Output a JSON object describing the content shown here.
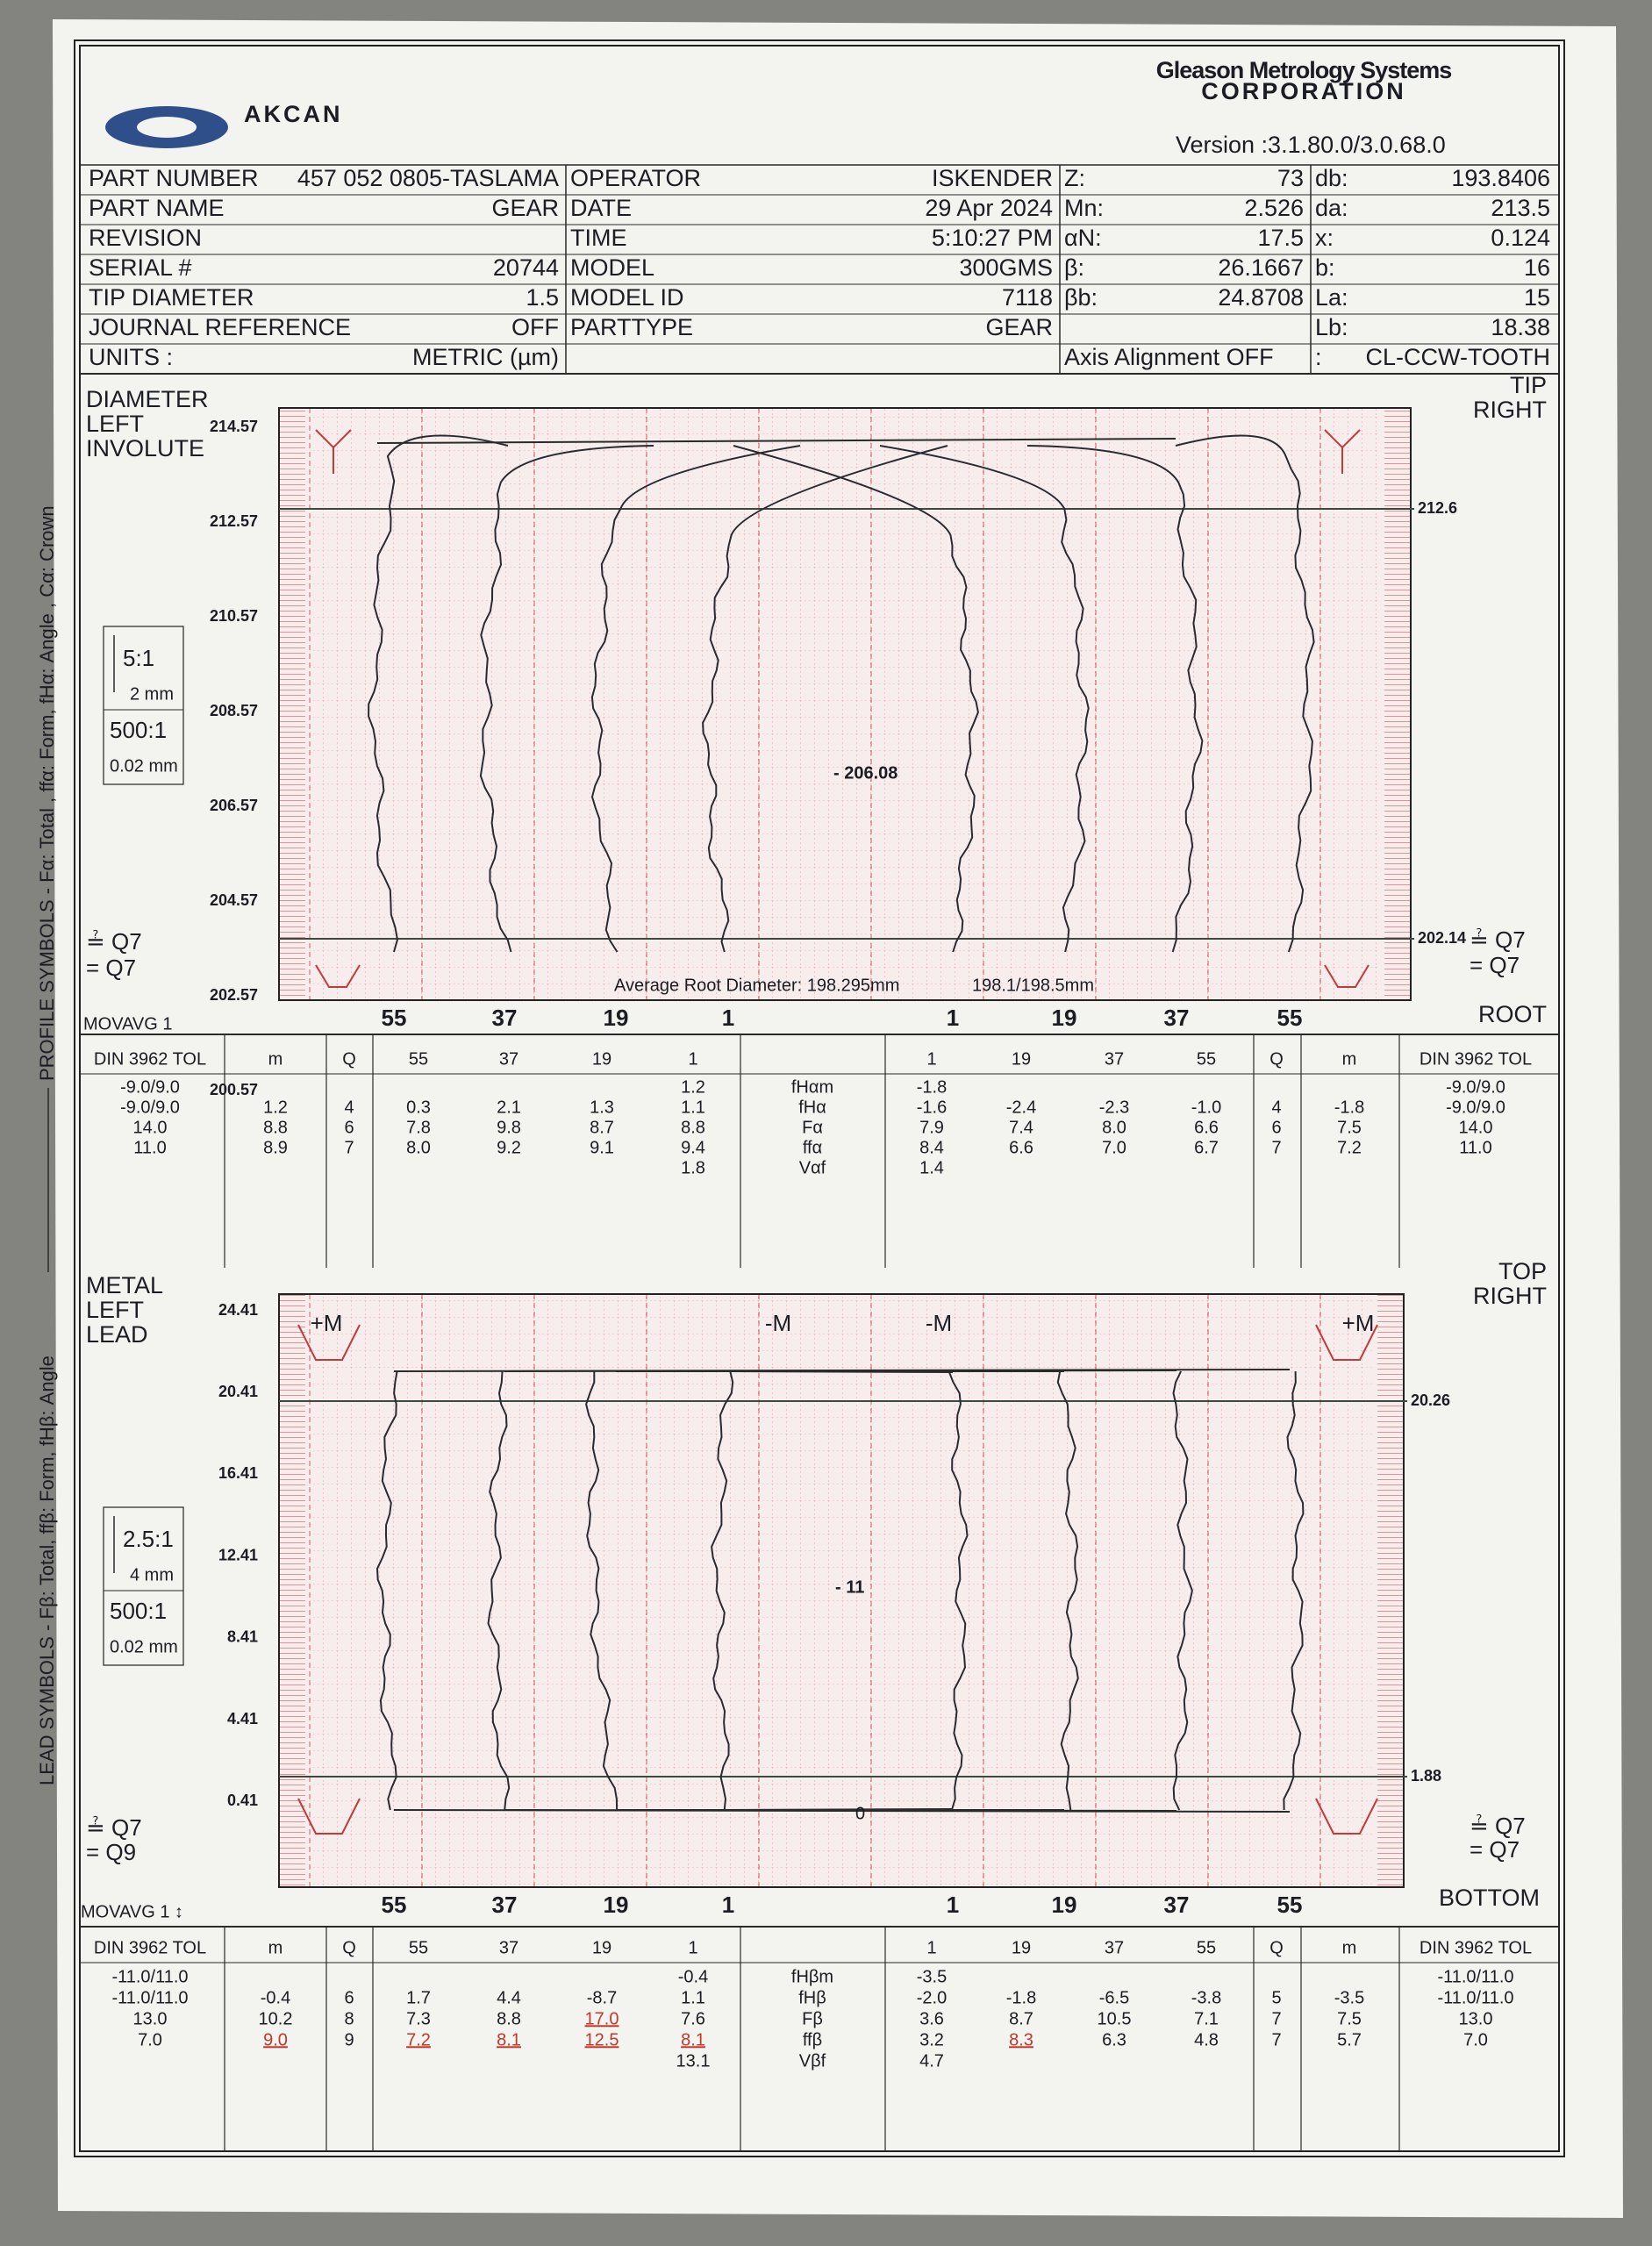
{
  "header": {
    "logo": "AKCAN",
    "vendor": "Gleason Metrology Systems",
    "vendor_sub": "CORPORATION",
    "version": "Version :3.1.80.0/3.0.68.0"
  },
  "side_text": [
    "LEAD SYMBOLS - Fβ: Total, ffβ: Form, fHβ: Angle",
    "PROFILE SYMBOLS - Fα: Total , ffα: Form, fHα: Angle , Cα: Crown"
  ],
  "info": {
    "rows": [
      [
        "PART NUMBER",
        "457 052 0805-TASLAMA",
        "OPERATOR",
        "ISKENDER",
        "Z:",
        "73",
        "db:",
        "193.8406"
      ],
      [
        "PART NAME",
        "GEAR",
        "DATE",
        "29 Apr 2024",
        "Mn:",
        "2.526",
        "da:",
        "213.5"
      ],
      [
        "REVISION",
        null,
        "TIME",
        "5:10:27 PM",
        "αN:",
        "17.5",
        "x:",
        "0.124"
      ],
      [
        "SERIAL #",
        "20744",
        "MODEL",
        "300GMS",
        "β:",
        "26.1667",
        "b:",
        "16"
      ],
      [
        "TIP DIAMETER",
        "1.5",
        "MODEL ID",
        "7118",
        "βb:",
        "24.8708",
        "La:",
        "15"
      ],
      [
        "JOURNAL REFERENCE",
        "OFF",
        "PARTTYPE",
        "GEAR",
        null,
        null,
        "Lb:",
        "18.38"
      ],
      [
        "UNITS :",
        "METRIC (µm)",
        null,
        null,
        "Axis Alignment OFF",
        null,
        ":",
        "CL-CCW-TOOTH"
      ]
    ]
  },
  "profile_chart": {
    "labels_left": [
      "DIAMETER",
      "LEFT",
      "INVOLUTE"
    ],
    "labels_right": [
      "TIP",
      "RIGHT"
    ],
    "yticks": [
      "214.57",
      "212.57",
      "210.57",
      "208.57",
      "206.57",
      "204.57",
      "202.57",
      "200.57"
    ],
    "right_marks": [
      "212.6",
      "202.14"
    ],
    "center_label": "- 206.08",
    "note": [
      "Average Root Diameter: 198.295mm",
      "198.1/198.5mm"
    ],
    "tooth_labels": [
      "55",
      "37",
      "19",
      "1",
      "1",
      "19",
      "37",
      "55"
    ],
    "filter": "MOVAVG 1",
    "bottom_label": "ROOT",
    "scale": [
      "5:1",
      "2 mm",
      "500:1",
      "0.02 mm"
    ],
    "quality_left": [
      "≟ Q7",
      "= Q7"
    ],
    "quality_right": [
      "≟ Q7",
      "= Q7"
    ]
  },
  "profile_table": {
    "header": [
      "DIN 3962 TOL",
      "m",
      "Q",
      "55",
      "37",
      "19",
      "1",
      null,
      "1",
      "19",
      "37",
      "55",
      "Q",
      "m",
      "DIN 3962 TOL"
    ],
    "rows": [
      [
        "-9.0/9.0",
        null,
        null,
        null,
        null,
        null,
        "1.2",
        "fHαm",
        "-1.8",
        null,
        null,
        null,
        null,
        null,
        "-9.0/9.0"
      ],
      [
        "-9.0/9.0",
        "1.2",
        "4",
        "0.3",
        "2.1",
        "1.3",
        "1.1",
        "fHα",
        "-1.6",
        "-2.4",
        "-2.3",
        "-1.0",
        "4",
        "-1.8",
        "-9.0/9.0"
      ],
      [
        "14.0",
        "8.8",
        "6",
        "7.8",
        "9.8",
        "8.7",
        "8.8",
        "Fα",
        "7.9",
        "7.4",
        "8.0",
        "6.6",
        "6",
        "7.5",
        "14.0"
      ],
      [
        "11.0",
        "8.9",
        "7",
        "8.0",
        "9.2",
        "9.1",
        "9.4",
        "ffα",
        "8.4",
        "6.6",
        "7.0",
        "6.7",
        "7",
        "7.2",
        "11.0"
      ],
      [
        null,
        null,
        null,
        null,
        null,
        null,
        "1.8",
        "Vαf",
        "1.4",
        null,
        null,
        null,
        null,
        null,
        null
      ]
    ]
  },
  "lead_chart": {
    "labels_left": [
      "METAL",
      "LEFT",
      "LEAD"
    ],
    "labels_right": [
      "TOP",
      "RIGHT"
    ],
    "yticks": [
      "24.41",
      "20.41",
      "16.41",
      "12.41",
      "8.41",
      "4.41",
      "0.41"
    ],
    "right_marks": [
      "20.26",
      "1.88"
    ],
    "markers": [
      "+M",
      "-M",
      "-M",
      "+M"
    ],
    "center_label": "- 11",
    "zero_label": "0",
    "tooth_labels": [
      "55",
      "37",
      "19",
      "1",
      "1",
      "19",
      "37",
      "55"
    ],
    "filter": "MOVAVG 1 ↕",
    "bottom_label": "BOTTOM",
    "scale": [
      "2.5:1",
      "4 mm",
      "500:1",
      "0.02 mm"
    ],
    "quality_left": [
      "≟ Q7",
      "= Q9"
    ],
    "quality_right": [
      "≟ Q7",
      "= Q7"
    ]
  },
  "lead_table": {
    "header": [
      "DIN 3962 TOL",
      "m",
      "Q",
      "55",
      "37",
      "19",
      "1",
      null,
      "1",
      "19",
      "37",
      "55",
      "Q",
      "m",
      "DIN 3962 TOL"
    ],
    "rows": [
      [
        "-11.0/11.0",
        null,
        null,
        null,
        null,
        null,
        "-0.4",
        "fHβm",
        "-3.5",
        null,
        null,
        null,
        null,
        null,
        "-11.0/11.0"
      ],
      [
        "-11.0/11.0",
        "-0.4",
        "6",
        "1.7",
        "4.4",
        "-8.7",
        "1.1",
        "fHβ",
        "-2.0",
        "-1.8",
        "-6.5",
        "-3.8",
        "5",
        "-3.5",
        "-11.0/11.0"
      ],
      [
        "13.0",
        "10.2",
        "8",
        "7.3",
        "8.8",
        "17.0",
        "7.6",
        "Fβ",
        "3.6",
        "8.7",
        "10.5",
        "7.1",
        "7",
        "7.5",
        "13.0"
      ],
      [
        "7.0",
        "9.0",
        "9",
        "7.2",
        "8.1",
        "12.5",
        "8.1",
        "ffβ",
        "3.2",
        "8.3",
        "6.3",
        "4.8",
        "7",
        "5.7",
        "7.0"
      ],
      [
        null,
        null,
        null,
        null,
        null,
        null,
        "13.1",
        "Vβf",
        "4.7",
        null,
        null,
        null,
        null,
        null,
        null
      ]
    ],
    "highlight_color": "#c0392b",
    "highlighted": [
      [
        3,
        1
      ],
      [
        3,
        3
      ],
      [
        3,
        4
      ],
      [
        2,
        5
      ],
      [
        3,
        5
      ],
      [
        3,
        6
      ],
      [
        3,
        9
      ]
    ]
  }
}
